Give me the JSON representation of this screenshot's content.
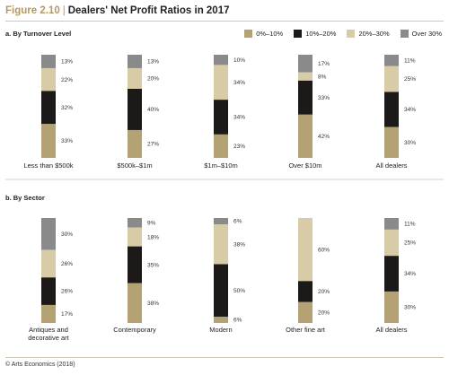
{
  "figure": {
    "label": "Figure 2.10",
    "separator": "|",
    "title": "Dealers' Net Profit Ratios in 2017"
  },
  "legend": [
    {
      "name": "0%–10%",
      "color": "#b4a174"
    },
    {
      "name": "10%–20%",
      "color": "#1c1a19"
    },
    {
      "name": "20%–30%",
      "color": "#d8cba8"
    },
    {
      "name": "Over 30%",
      "color": "#8a8a8a"
    }
  ],
  "source": "© Arts Economics (2018)",
  "chart_data": [
    {
      "type": "bar",
      "stacked": true,
      "title": "a. By Turnover Level",
      "categories": [
        "Less than $500k",
        "$500k–$1m",
        "$1m–$10m",
        "Over $10m",
        "All dealers"
      ],
      "series": [
        {
          "name": "0%–10%",
          "values": [
            33,
            27,
            23,
            42,
            30
          ],
          "labels": [
            "33%",
            "27%",
            "23%",
            "42%",
            "30%"
          ]
        },
        {
          "name": "10%–20%",
          "values": [
            32,
            40,
            34,
            33,
            34
          ],
          "labels": [
            "32%",
            "40%",
            "34%",
            "33%",
            "34%"
          ]
        },
        {
          "name": "20%–30%",
          "values": [
            22,
            20,
            34,
            8,
            25
          ],
          "labels": [
            "22%",
            "20%",
            "34%",
            "8%",
            "25%"
          ]
        },
        {
          "name": "Over 30%",
          "values": [
            13,
            13,
            10,
            17,
            11
          ],
          "labels": [
            "13%",
            "13%",
            "10%",
            "17%",
            "11%"
          ]
        }
      ],
      "ylim": [
        0,
        100
      ]
    },
    {
      "type": "bar",
      "stacked": true,
      "title": "b. By Sector",
      "categories": [
        [
          "Antiques and",
          "decorative art"
        ],
        [
          "Contemporary"
        ],
        [
          "Modern"
        ],
        [
          "Other fine art"
        ],
        [
          "All dealers"
        ]
      ],
      "series": [
        {
          "name": "0%–10%",
          "values": [
            17,
            38,
            6,
            20,
            30
          ],
          "labels": [
            "17%",
            "38%",
            "6%",
            "20%",
            "30%"
          ]
        },
        {
          "name": "10%–20%",
          "values": [
            26,
            35,
            50,
            20,
            34
          ],
          "labels": [
            "26%",
            "35%",
            "50%",
            "20%",
            "34%"
          ]
        },
        {
          "name": "20%–30%",
          "values": [
            26,
            18,
            38,
            60,
            25
          ],
          "labels": [
            "26%",
            "18%",
            "38%",
            "60%",
            "25%"
          ]
        },
        {
          "name": "Over 30%",
          "values": [
            30,
            9,
            6,
            0,
            11
          ],
          "labels": [
            "30%",
            "9%",
            "6%",
            "",
            "11%"
          ]
        }
      ],
      "ylim": [
        0,
        100
      ]
    }
  ]
}
